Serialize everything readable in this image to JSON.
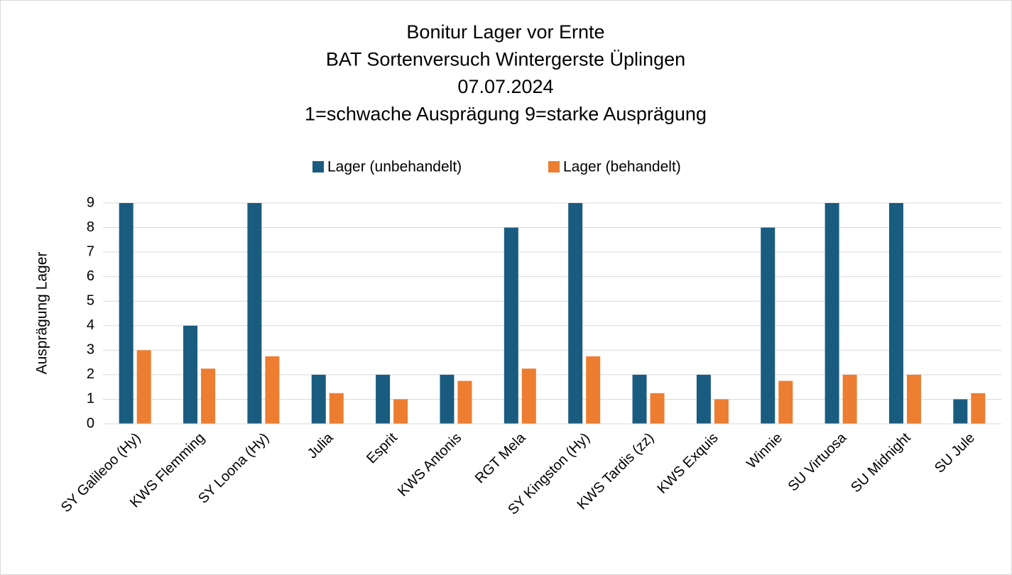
{
  "chart_data": {
    "type": "bar",
    "title": [
      "Bonitur Lager vor Ernte",
      "BAT Sortenversuch Wintergerste Üplingen",
      "07.07.2024",
      "1=schwache Ausprägung 9=starke Ausprägung"
    ],
    "y_label": "Ausprägung Lager",
    "categories": [
      "SY Galileoo (Hy)",
      "KWS Flemming",
      "SY Loona (Hy)",
      "Julia",
      "Esprit",
      "KWS Antonis",
      "RGT Mela",
      "SY Kingston (Hy)",
      "KWS Tardis (zz)",
      "KWS Exquis",
      "Winnie",
      "SU Virtuosa",
      "SU Midnight",
      "SU Jule"
    ],
    "series": [
      {
        "name": "Lager (unbehandelt)",
        "color": "#1a5c80",
        "values": [
          9,
          4,
          9,
          2,
          2,
          2,
          8,
          9,
          2,
          2,
          8,
          9,
          9,
          1
        ]
      },
      {
        "name": "Lager (behandelt)",
        "color": "#ed7d31",
        "values": [
          3,
          2.25,
          2.75,
          1.25,
          1,
          1.75,
          2.25,
          2.75,
          1.25,
          1,
          1.75,
          2,
          2,
          1.25
        ]
      }
    ],
    "ylim": [
      0,
      9
    ],
    "yticks": [
      0,
      1,
      2,
      3,
      4,
      5,
      6,
      7,
      8,
      9
    ],
    "grid": true,
    "legend": "top"
  }
}
